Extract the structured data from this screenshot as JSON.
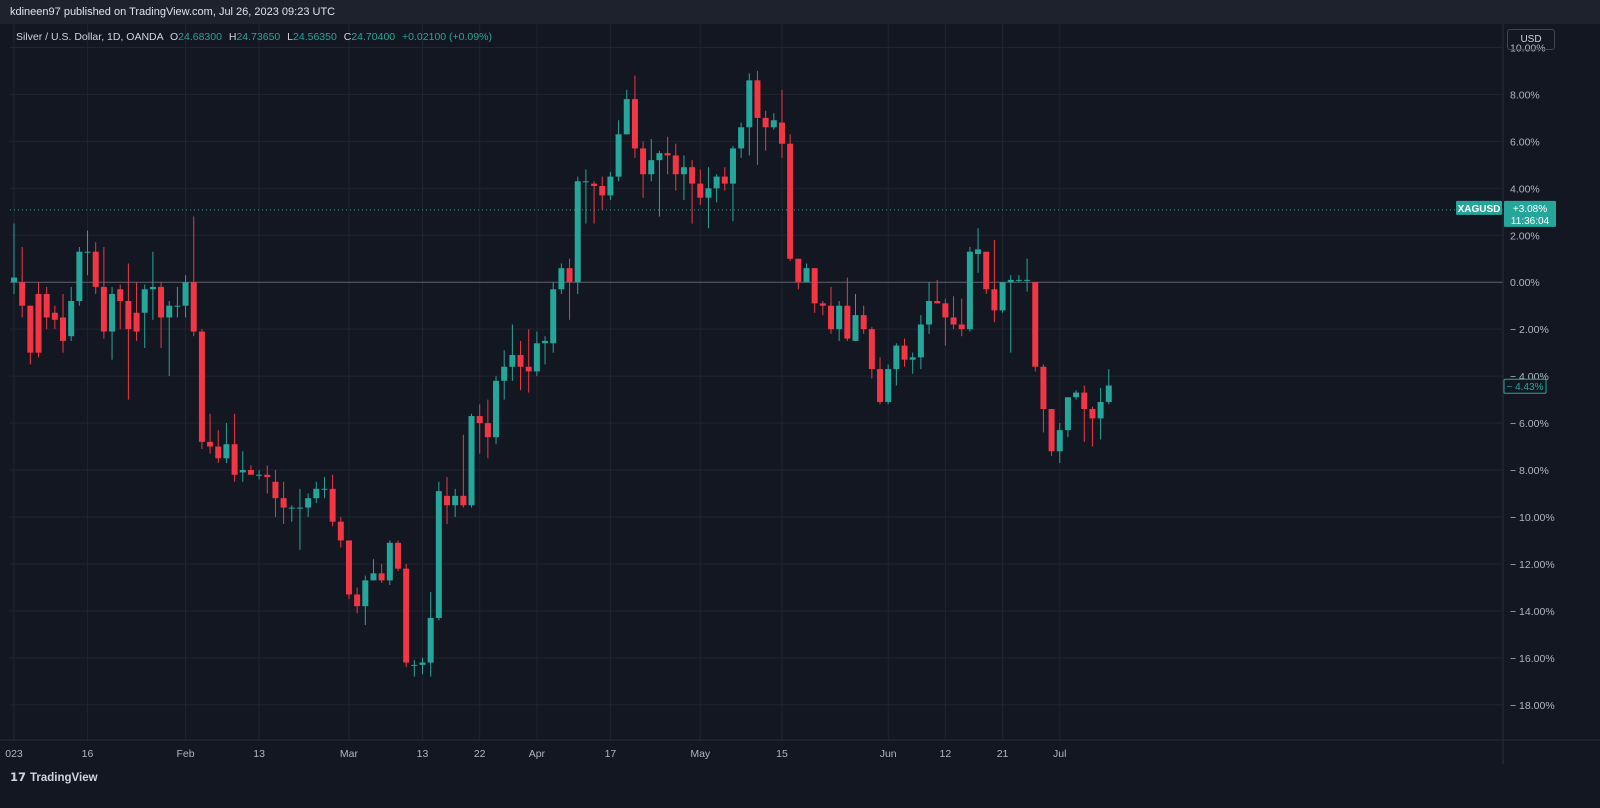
{
  "header": {
    "published": "kdineen97 published on TradingView.com, Jul 26, 2023 09:23 UTC"
  },
  "legend": {
    "symbol": "Silver / U.S. Dollar, 1D, OANDA",
    "o_key": "O",
    "o_val": "24.68300",
    "h_key": "H",
    "h_val": "24.73650",
    "l_key": "L",
    "l_val": "24.56350",
    "c_key": "C",
    "c_val": "24.70400",
    "change": "+0.02100 (+0.09%)"
  },
  "currency_button": "USD",
  "brand": {
    "name": "TradingView"
  },
  "colors": {
    "up": "#26a69a",
    "down": "#f23645",
    "background": "#131722",
    "grid": "#1f2430"
  },
  "chart_data": {
    "type": "candlestick",
    "symbol": "XAGUSD",
    "y_unit": "%",
    "ylim": [
      -19.5,
      11
    ],
    "y_ticks": [
      10,
      8,
      6,
      4,
      2,
      0,
      -2,
      -4,
      -6,
      -8,
      -10,
      -12,
      -14,
      -16,
      -18
    ],
    "y_tick_labels": [
      "10.00%",
      "8.00%",
      "6.00%",
      "4.00%",
      "2.00%",
      "0.00%",
      "− 2.00%",
      "− 4.00%",
      "− 6.00%",
      "− 8.00%",
      "− 10.00%",
      "− 12.00%",
      "− 14.00%",
      "− 16.00%",
      "− 18.00%"
    ],
    "x_ticks": [
      {
        "label": "023",
        "index": 0
      },
      {
        "label": "16",
        "index": 9
      },
      {
        "label": "Feb",
        "index": 21
      },
      {
        "label": "13",
        "index": 30
      },
      {
        "label": "Mar",
        "index": 41
      },
      {
        "label": "13",
        "index": 50
      },
      {
        "label": "22",
        "index": 57
      },
      {
        "label": "Apr",
        "index": 64
      },
      {
        "label": "17",
        "index": 73
      },
      {
        "label": "May",
        "index": 84
      },
      {
        "label": "15",
        "index": 94
      },
      {
        "label": "Jun",
        "index": 107
      },
      {
        "label": "12",
        "index": 114
      },
      {
        "label": "21",
        "index": 121
      },
      {
        "label": "Jul",
        "index": 128
      }
    ],
    "reference_line": {
      "label": "XAGUSD",
      "change": "+3.08%",
      "countdown": "11:36:04",
      "value": 3.08
    },
    "last_value": {
      "label": "− 4.43%",
      "value": -4.43
    },
    "candles": [
      [
        0,
        0.0,
        0.2,
        2.5,
        -0.5
      ],
      [
        0,
        0.0,
        -1.0,
        1.5,
        -1.5
      ],
      [
        0,
        -1.0,
        -3.0,
        -1.0,
        -3.5
      ],
      [
        0,
        -0.5,
        -3.0,
        0.0,
        -3.2
      ],
      [
        0,
        -0.5,
        -1.5,
        -0.2,
        -2.0
      ],
      [
        0,
        -1.3,
        -1.6,
        -1.0,
        -2.0
      ],
      [
        0,
        -1.5,
        -2.5,
        -0.5,
        -3.0
      ],
      [
        0,
        -2.3,
        -0.8,
        -0.2,
        -2.5
      ],
      [
        0,
        -0.8,
        1.3,
        1.5,
        -1.0
      ],
      [
        0,
        1.3,
        1.3,
        2.2,
        0.3
      ],
      [
        0,
        1.3,
        -0.2,
        1.7,
        -0.5
      ],
      [
        0,
        -0.2,
        -2.1,
        1.5,
        -2.4
      ],
      [
        0,
        -2.1,
        -0.5,
        -0.2,
        -3.3
      ],
      [
        0,
        -0.3,
        -0.8,
        -0.1,
        -2.0
      ],
      [
        0,
        -0.8,
        -2.0,
        0.8,
        -5.0
      ],
      [
        0,
        -1.3,
        -2.1,
        0.0,
        -2.5
      ],
      [
        0,
        -1.3,
        -0.3,
        -0.1,
        -2.8
      ],
      [
        0,
        -0.3,
        -0.2,
        1.3,
        -1.6
      ],
      [
        0,
        -0.2,
        -1.5,
        0.0,
        -2.8
      ],
      [
        0,
        -1.5,
        -1.0,
        -0.8,
        -4.0
      ],
      [
        0,
        -1.0,
        -1.0,
        -0.2,
        -1.5
      ],
      [
        0,
        -1.0,
        0.0,
        0.3,
        -1.5
      ],
      [
        0,
        0.0,
        -2.1,
        2.8,
        -2.3
      ],
      [
        0,
        -2.1,
        -6.8,
        -2.0,
        -7.1
      ],
      [
        0,
        -6.8,
        -7.0,
        -5.6,
        -7.3
      ],
      [
        0,
        -7.0,
        -7.5,
        -6.3,
        -7.7
      ],
      [
        0,
        -7.5,
        -6.9,
        -6.0,
        -7.7
      ],
      [
        0,
        -6.9,
        -8.2,
        -5.6,
        -8.5
      ],
      [
        0,
        -8.1,
        -8.0,
        -7.2,
        -8.5
      ],
      [
        0,
        -8.0,
        -8.2,
        -7.8,
        -8.2
      ],
      [
        0,
        -8.2,
        -8.2,
        -8.0,
        -8.4
      ],
      [
        0,
        -8.2,
        -8.3,
        -7.8,
        -9.0
      ],
      [
        0,
        -8.5,
        -9.2,
        -8.0,
        -10.0
      ],
      [
        0,
        -9.2,
        -9.6,
        -8.5,
        -10.3
      ],
      [
        0,
        -9.6,
        -9.6,
        -9.5,
        -10.2
      ],
      [
        0,
        -9.6,
        -9.6,
        -8.8,
        -11.4
      ],
      [
        0,
        -9.6,
        -9.2,
        -9.0,
        -10.0
      ],
      [
        0,
        -9.2,
        -8.8,
        -8.5,
        -9.4
      ],
      [
        0,
        -8.8,
        -8.8,
        -8.3,
        -9.2
      ],
      [
        0,
        -8.8,
        -10.2,
        -8.2,
        -10.4
      ],
      [
        0,
        -10.2,
        -11.0,
        -10.0,
        -11.3
      ],
      [
        0,
        -11.0,
        -13.3,
        -11.0,
        -13.5
      ],
      [
        0,
        -13.3,
        -13.8,
        -13.0,
        -14.1
      ],
      [
        0,
        -13.8,
        -12.7,
        -12.5,
        -14.6
      ],
      [
        0,
        -12.7,
        -12.4,
        -11.8,
        -12.7
      ],
      [
        0,
        -12.4,
        -12.7,
        -12.0,
        -12.8
      ],
      [
        0,
        -12.7,
        -11.1,
        -11.0,
        -12.9
      ],
      [
        0,
        -11.1,
        -12.2,
        -11.0,
        -12.3
      ],
      [
        0,
        -12.2,
        -16.2,
        -12.0,
        -16.4
      ],
      [
        0,
        -16.3,
        -16.3,
        -16.1,
        -16.8
      ],
      [
        0,
        -16.3,
        -16.2,
        -16.0,
        -16.7
      ],
      [
        0,
        -16.2,
        -14.3,
        -13.2,
        -16.8
      ],
      [
        0,
        -14.3,
        -8.9,
        -8.5,
        -14.4
      ],
      [
        0,
        -9.1,
        -9.5,
        -8.3,
        -10.3
      ],
      [
        0,
        -9.5,
        -9.1,
        -8.8,
        -10.0
      ],
      [
        0,
        -9.1,
        -9.5,
        -6.5,
        -9.6
      ],
      [
        0,
        -9.5,
        -5.7,
        -5.6,
        -9.6
      ],
      [
        0,
        -5.7,
        -6.0,
        -5.2,
        -7.3
      ],
      [
        0,
        -6.0,
        -6.6,
        -5.0,
        -7.5
      ],
      [
        0,
        -6.6,
        -4.2,
        -4.0,
        -6.9
      ],
      [
        0,
        -4.2,
        -3.6,
        -2.9,
        -5.0
      ],
      [
        0,
        -3.6,
        -3.1,
        -1.8,
        -4.2
      ],
      [
        0,
        -3.1,
        -3.6,
        -2.5,
        -4.6
      ],
      [
        0,
        -3.6,
        -3.8,
        -2.0,
        -4.7
      ],
      [
        0,
        -3.8,
        -2.6,
        -2.1,
        -4.0
      ],
      [
        0,
        -2.6,
        -2.5,
        -2.3,
        -3.5
      ],
      [
        0,
        -2.6,
        -0.3,
        0.0,
        -3.0
      ],
      [
        0,
        -0.3,
        0.6,
        0.8,
        -0.5
      ],
      [
        0,
        0.6,
        0.0,
        1.0,
        -1.6
      ],
      [
        0,
        0.0,
        4.3,
        4.5,
        -0.5
      ],
      [
        0,
        4.3,
        4.3,
        4.8,
        2.5
      ],
      [
        0,
        4.2,
        4.1,
        4.3,
        2.5
      ],
      [
        0,
        4.1,
        3.7,
        4.5,
        3.1
      ],
      [
        0,
        3.7,
        4.5,
        4.7,
        3.5
      ],
      [
        0,
        4.5,
        6.3,
        6.9,
        4.3
      ],
      [
        0,
        6.3,
        7.8,
        8.2,
        6.3
      ],
      [
        0,
        7.8,
        5.7,
        8.8,
        5.3
      ],
      [
        0,
        5.7,
        4.6,
        6.0,
        3.6
      ],
      [
        0,
        4.6,
        5.2,
        6.1,
        4.3
      ],
      [
        0,
        5.2,
        5.5,
        5.6,
        2.8
      ],
      [
        0,
        5.5,
        5.4,
        6.2,
        4.6
      ],
      [
        0,
        5.4,
        4.6,
        5.9,
        3.9
      ],
      [
        0,
        4.6,
        4.9,
        5.4,
        3.5
      ],
      [
        0,
        4.9,
        4.2,
        5.2,
        2.5
      ],
      [
        0,
        4.2,
        3.6,
        4.8,
        3.3
      ],
      [
        0,
        3.6,
        4.0,
        4.9,
        2.3
      ],
      [
        0,
        4.0,
        4.5,
        4.6,
        3.4
      ],
      [
        0,
        4.5,
        4.2,
        4.9,
        3.9
      ],
      [
        0,
        4.2,
        5.7,
        5.8,
        2.6
      ],
      [
        0,
        5.7,
        6.6,
        6.8,
        5.3
      ],
      [
        0,
        6.6,
        8.6,
        8.9,
        5.4
      ],
      [
        0,
        8.6,
        7.0,
        9.0,
        5.0
      ],
      [
        0,
        7.0,
        6.6,
        7.3,
        5.6
      ],
      [
        0,
        6.6,
        6.9,
        7.2,
        6.5
      ],
      [
        0,
        6.8,
        5.9,
        8.2,
        5.3
      ],
      [
        0,
        5.9,
        1.0,
        6.3,
        0.9
      ],
      [
        0,
        1.0,
        0.0,
        1.0,
        -0.3
      ],
      [
        0,
        0.0,
        0.6,
        0.8,
        0.0
      ],
      [
        0,
        0.6,
        -0.9,
        0.6,
        -1.3
      ],
      [
        0,
        -0.9,
        -1.0,
        -0.8,
        -1.4
      ],
      [
        0,
        -1.0,
        -2.0,
        -0.2,
        -2.2
      ],
      [
        0,
        -2.0,
        -1.0,
        -0.8,
        -2.5
      ],
      [
        0,
        -1.0,
        -2.4,
        0.2,
        -2.5
      ],
      [
        0,
        -2.5,
        -1.4,
        -0.5,
        -2.5
      ],
      [
        0,
        -1.4,
        -2.0,
        -1.0,
        -2.2
      ],
      [
        0,
        -2.0,
        -3.7,
        -1.9,
        -4.1
      ],
      [
        0,
        -3.7,
        -5.1,
        -3.2,
        -5.2
      ],
      [
        0,
        -5.1,
        -3.7,
        -3.5,
        -5.2
      ],
      [
        0,
        -3.7,
        -2.7,
        -2.6,
        -4.4
      ],
      [
        0,
        -2.7,
        -3.3,
        -2.4,
        -3.6
      ],
      [
        0,
        -3.3,
        -3.2,
        -3.0,
        -3.9
      ],
      [
        0,
        -3.2,
        -1.8,
        -1.4,
        -3.7
      ],
      [
        0,
        -1.8,
        -0.8,
        0.0,
        -2.2
      ],
      [
        0,
        -0.8,
        -0.9,
        0.1,
        -0.9
      ],
      [
        0,
        -0.9,
        -1.5,
        -0.7,
        -2.7
      ],
      [
        0,
        -1.5,
        -1.8,
        -0.6,
        -2.0
      ],
      [
        0,
        -1.8,
        -2.0,
        -0.7,
        -2.3
      ],
      [
        0,
        -2.0,
        1.3,
        1.5,
        -2.1
      ],
      [
        0,
        1.2,
        1.4,
        2.3,
        0.4
      ],
      [
        0,
        1.3,
        -0.3,
        1.3,
        -0.5
      ],
      [
        0,
        -0.3,
        -1.2,
        1.8,
        -1.7
      ],
      [
        0,
        -1.2,
        0.0,
        0.0,
        -1.3
      ],
      [
        0,
        0.0,
        0.1,
        0.3,
        -3.0
      ],
      [
        0,
        0.1,
        0.1,
        0.3,
        0.0
      ],
      [
        0,
        0.1,
        0.1,
        1.0,
        -0.4
      ],
      [
        0,
        0.0,
        -3.6,
        0.0,
        -3.8
      ],
      [
        0,
        -3.6,
        -5.4,
        -3.5,
        -6.4
      ],
      [
        0,
        -5.4,
        -7.2,
        -5.4,
        -7.4
      ],
      [
        0,
        -7.2,
        -6.3,
        -6.0,
        -7.7
      ],
      [
        0,
        -6.3,
        -4.9,
        -4.9,
        -6.6
      ],
      [
        0,
        -4.9,
        -4.7,
        -4.6,
        -5.0
      ],
      [
        0,
        -4.7,
        -5.4,
        -4.4,
        -6.8
      ],
      [
        0,
        -5.4,
        -5.8,
        -5.3,
        -7.0
      ],
      [
        0,
        -5.8,
        -5.1,
        -4.5,
        -6.7
      ],
      [
        0,
        -5.1,
        -4.4,
        -3.7,
        -5.2
      ]
    ]
  }
}
